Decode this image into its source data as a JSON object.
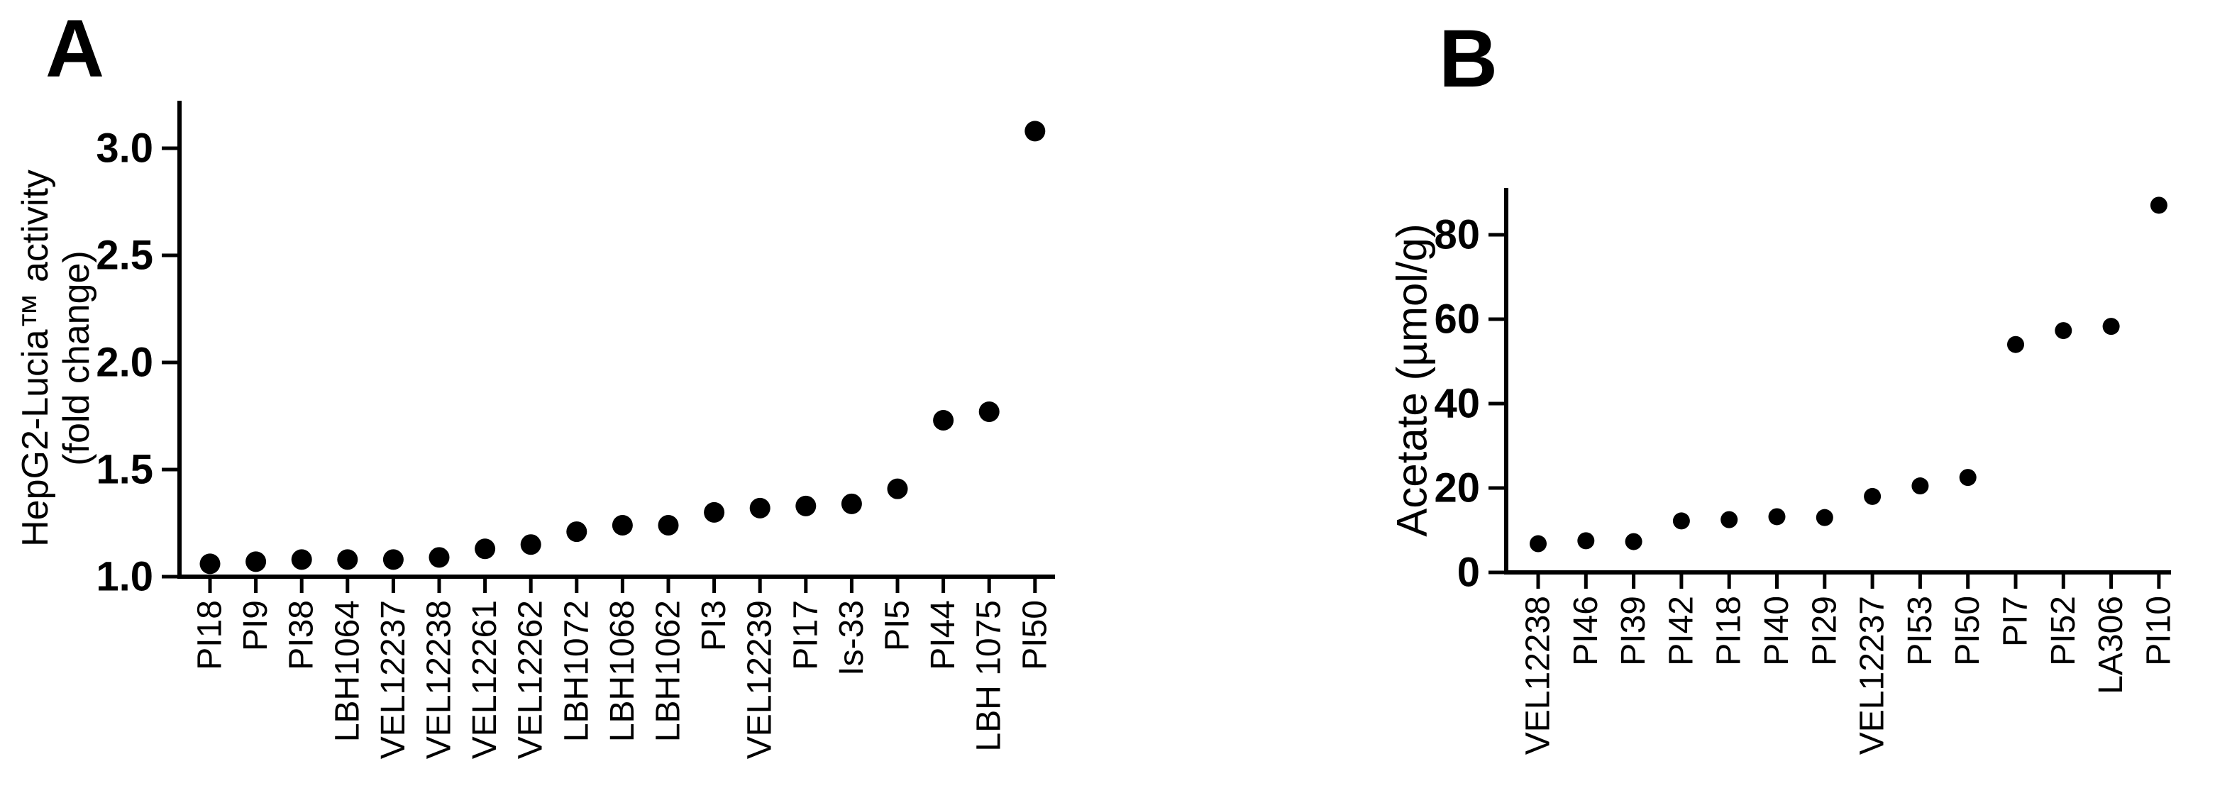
{
  "figure": {
    "background_color": "#ffffff",
    "ink_color": "#000000"
  },
  "panels": [
    {
      "label": "A"
    },
    {
      "label": "B"
    }
  ],
  "chart_data": [
    {
      "type": "scatter",
      "panel": "A",
      "title": "",
      "xlabel": "",
      "ylabel_lines": [
        "HepG2-Lucia™ activity",
        "(fold change)"
      ],
      "categories": [
        "PI18",
        "PI9",
        "PI38",
        "LBH1064",
        "VEL12237",
        "VEL12238",
        "VEL12261",
        "VEL12262",
        "LBH1072",
        "LBH1068",
        "LBH1062",
        "PI3",
        "VEL12239",
        "PI17",
        "Is-33",
        "PI5",
        "PI44",
        "LBH 1075",
        "PI50"
      ],
      "values": [
        1.06,
        1.07,
        1.08,
        1.08,
        1.08,
        1.09,
        1.13,
        1.15,
        1.21,
        1.24,
        1.24,
        1.3,
        1.32,
        1.33,
        1.34,
        1.41,
        1.73,
        1.77,
        3.08
      ],
      "yticks": [
        1.0,
        1.5,
        2.0,
        2.5,
        3.0
      ],
      "ytick_labels": [
        "1.0",
        "1.5",
        "2.0",
        "2.5",
        "3.0"
      ],
      "ylim": [
        1.0,
        3.22
      ],
      "grid": false,
      "legend": null,
      "marker": "circle",
      "marker_color": "#000000",
      "x_tick_label_rotation": -90
    },
    {
      "type": "scatter",
      "panel": "B",
      "title": "",
      "xlabel": "",
      "ylabel_lines": [
        "Acetate (µmol/g)"
      ],
      "categories": [
        "VEL12238",
        "PI46",
        "PI39",
        "PI42",
        "PI18",
        "PI40",
        "PI29",
        "VEL12237",
        "PI53",
        "PI50",
        "PI7",
        "PI52",
        "LA306",
        "PI10"
      ],
      "values": [
        6.8,
        7.5,
        7.3,
        12.2,
        12.5,
        13.2,
        13.0,
        18.0,
        20.5,
        22.5,
        54.0,
        57.3,
        58.3,
        87.0
      ],
      "yticks": [
        0,
        20,
        40,
        60,
        80
      ],
      "ytick_labels": [
        "0",
        "20",
        "40",
        "60",
        "80"
      ],
      "ylim": [
        0,
        91
      ],
      "grid": false,
      "legend": null,
      "marker": "circle",
      "marker_color": "#000000",
      "x_tick_label_rotation": -90
    }
  ]
}
